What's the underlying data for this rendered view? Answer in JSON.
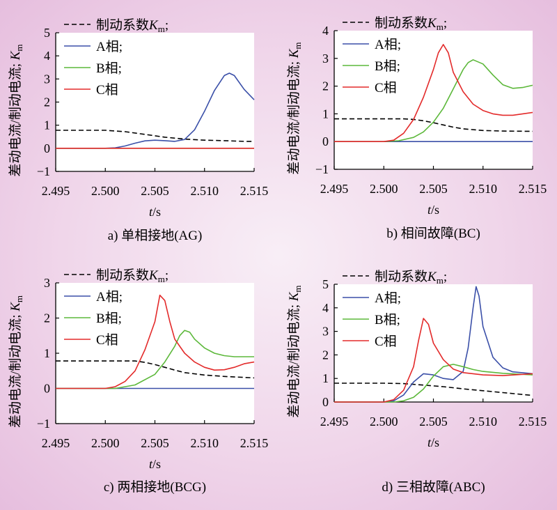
{
  "chart_data": [
    {
      "type": "line",
      "caption": "a) 单相接地(AG)",
      "xlabel_var": "t",
      "xlabel_unit": "/s",
      "ylabel": "差动电流/制动电流; K",
      "ylabel_sub": "m",
      "xlim": [
        2.495,
        2.515
      ],
      "ylim": [
        -1,
        5
      ],
      "x_ticks": [
        "2.495",
        "2.500",
        "2.505",
        "2.510",
        "2.515"
      ],
      "y_ticks": [
        "−1",
        "0",
        "1",
        "2",
        "3",
        "4",
        "5"
      ],
      "series": [
        {
          "name": "制动系数K",
          "name_sub": "m",
          "legend_suffix": ";",
          "color": "#000000",
          "dashed": true,
          "points": [
            [
              2.495,
              0.78
            ],
            [
              2.5,
              0.78
            ],
            [
              2.502,
              0.72
            ],
            [
              2.504,
              0.6
            ],
            [
              2.506,
              0.48
            ],
            [
              2.508,
              0.4
            ],
            [
              2.51,
              0.35
            ],
            [
              2.512,
              0.33
            ],
            [
              2.514,
              0.3
            ],
            [
              2.515,
              0.3
            ]
          ]
        },
        {
          "name": "A相",
          "legend_suffix": ";",
          "color": "#3a4fa8",
          "dashed": false,
          "points": [
            [
              2.495,
              0
            ],
            [
              2.5,
              0
            ],
            [
              2.501,
              0.02
            ],
            [
              2.502,
              0.1
            ],
            [
              2.503,
              0.22
            ],
            [
              2.504,
              0.32
            ],
            [
              2.505,
              0.35
            ],
            [
              2.506,
              0.33
            ],
            [
              2.507,
              0.3
            ],
            [
              2.508,
              0.38
            ],
            [
              2.509,
              0.8
            ],
            [
              2.51,
              1.6
            ],
            [
              2.511,
              2.5
            ],
            [
              2.512,
              3.15
            ],
            [
              2.5125,
              3.25
            ],
            [
              2.513,
              3.15
            ],
            [
              2.514,
              2.55
            ],
            [
              2.515,
              2.1
            ]
          ]
        },
        {
          "name": "B相",
          "legend_suffix": ";",
          "color": "#5cb83a",
          "dashed": false,
          "points": [
            [
              2.495,
              0
            ],
            [
              2.515,
              0
            ]
          ]
        },
        {
          "name": "C相",
          "legend_suffix": "",
          "color": "#e32a2a",
          "dashed": false,
          "points": [
            [
              2.495,
              0
            ],
            [
              2.515,
              0
            ]
          ]
        }
      ]
    },
    {
      "type": "line",
      "caption": "b) 相间故障(BC)",
      "xlabel_var": "t",
      "xlabel_unit": "/s",
      "ylabel": "差动电流/制动电流; K",
      "ylabel_sub": "m",
      "xlim": [
        2.495,
        2.515
      ],
      "ylim": [
        -1,
        4
      ],
      "x_ticks": [
        "2.495",
        "2.500",
        "2.505",
        "2.510",
        "2.515"
      ],
      "y_ticks": [
        "−1",
        "0",
        "1",
        "2",
        "3",
        "4"
      ],
      "series": [
        {
          "name": "制动系数K",
          "name_sub": "m",
          "legend_suffix": ";",
          "color": "#000000",
          "dashed": true,
          "points": [
            [
              2.495,
              0.82
            ],
            [
              2.502,
              0.82
            ],
            [
              2.503,
              0.8
            ],
            [
              2.504,
              0.75
            ],
            [
              2.505,
              0.68
            ],
            [
              2.506,
              0.6
            ],
            [
              2.507,
              0.52
            ],
            [
              2.508,
              0.46
            ],
            [
              2.51,
              0.4
            ],
            [
              2.512,
              0.38
            ],
            [
              2.515,
              0.37
            ]
          ]
        },
        {
          "name": "A相",
          "legend_suffix": ";",
          "color": "#3a4fa8",
          "dashed": false,
          "points": [
            [
              2.495,
              0
            ],
            [
              2.515,
              0
            ]
          ]
        },
        {
          "name": "B相",
          "legend_suffix": ";",
          "color": "#5cb83a",
          "dashed": false,
          "points": [
            [
              2.495,
              0
            ],
            [
              2.5,
              0
            ],
            [
              2.5015,
              0.03
            ],
            [
              2.503,
              0.15
            ],
            [
              2.504,
              0.35
            ],
            [
              2.505,
              0.7
            ],
            [
              2.506,
              1.2
            ],
            [
              2.507,
              1.9
            ],
            [
              2.508,
              2.6
            ],
            [
              2.5085,
              2.85
            ],
            [
              2.509,
              2.95
            ],
            [
              2.51,
              2.8
            ],
            [
              2.511,
              2.4
            ],
            [
              2.512,
              2.05
            ],
            [
              2.513,
              1.92
            ],
            [
              2.514,
              1.95
            ],
            [
              2.515,
              2.03
            ]
          ]
        },
        {
          "name": "C相",
          "legend_suffix": "",
          "color": "#e32a2a",
          "dashed": false,
          "points": [
            [
              2.495,
              0
            ],
            [
              2.5,
              0
            ],
            [
              2.501,
              0.05
            ],
            [
              2.502,
              0.3
            ],
            [
              2.503,
              0.8
            ],
            [
              2.504,
              1.6
            ],
            [
              2.505,
              2.6
            ],
            [
              2.5055,
              3.2
            ],
            [
              2.506,
              3.5
            ],
            [
              2.5065,
              3.2
            ],
            [
              2.507,
              2.5
            ],
            [
              2.508,
              1.8
            ],
            [
              2.509,
              1.35
            ],
            [
              2.51,
              1.12
            ],
            [
              2.511,
              1.0
            ],
            [
              2.512,
              0.95
            ],
            [
              2.513,
              0.95
            ],
            [
              2.514,
              1.0
            ],
            [
              2.515,
              1.05
            ]
          ]
        }
      ]
    },
    {
      "type": "line",
      "caption": "c) 两相接地(BCG)",
      "xlabel_var": "t",
      "xlabel_unit": "/s",
      "ylabel": "差动电流/制动电流; K",
      "ylabel_sub": "m",
      "xlim": [
        2.495,
        2.515
      ],
      "ylim": [
        -1,
        3
      ],
      "x_ticks": [
        "2.495",
        "2.500",
        "2.505",
        "2.510",
        "2.515"
      ],
      "y_ticks": [
        "−1",
        "0",
        "1",
        "2",
        "3"
      ],
      "series": [
        {
          "name": "制动系数K",
          "name_sub": "m",
          "legend_suffix": ";",
          "color": "#000000",
          "dashed": true,
          "points": [
            [
              2.495,
              0.78
            ],
            [
              2.503,
              0.78
            ],
            [
              2.504,
              0.74
            ],
            [
              2.505,
              0.68
            ],
            [
              2.506,
              0.6
            ],
            [
              2.507,
              0.52
            ],
            [
              2.508,
              0.45
            ],
            [
              2.51,
              0.38
            ],
            [
              2.512,
              0.34
            ],
            [
              2.515,
              0.3
            ]
          ]
        },
        {
          "name": "A相",
          "legend_suffix": ";",
          "color": "#3a4fa8",
          "dashed": false,
          "points": [
            [
              2.495,
              0
            ],
            [
              2.515,
              0
            ]
          ]
        },
        {
          "name": "B相",
          "legend_suffix": ";",
          "color": "#5cb83a",
          "dashed": false,
          "points": [
            [
              2.495,
              0
            ],
            [
              2.501,
              0
            ],
            [
              2.503,
              0.1
            ],
            [
              2.505,
              0.4
            ],
            [
              2.506,
              0.75
            ],
            [
              2.507,
              1.2
            ],
            [
              2.5075,
              1.5
            ],
            [
              2.508,
              1.65
            ],
            [
              2.5085,
              1.6
            ],
            [
              2.509,
              1.4
            ],
            [
              2.51,
              1.15
            ],
            [
              2.511,
              1.0
            ],
            [
              2.512,
              0.93
            ],
            [
              2.513,
              0.9
            ],
            [
              2.515,
              0.9
            ]
          ]
        },
        {
          "name": "C相",
          "legend_suffix": "",
          "color": "#e32a2a",
          "dashed": false,
          "points": [
            [
              2.495,
              0
            ],
            [
              2.5,
              0
            ],
            [
              2.501,
              0.05
            ],
            [
              2.502,
              0.2
            ],
            [
              2.503,
              0.5
            ],
            [
              2.504,
              1.1
            ],
            [
              2.505,
              1.9
            ],
            [
              2.5055,
              2.65
            ],
            [
              2.506,
              2.5
            ],
            [
              2.5065,
              1.9
            ],
            [
              2.507,
              1.4
            ],
            [
              2.508,
              1.0
            ],
            [
              2.509,
              0.75
            ],
            [
              2.51,
              0.6
            ],
            [
              2.511,
              0.52
            ],
            [
              2.512,
              0.53
            ],
            [
              2.513,
              0.6
            ],
            [
              2.514,
              0.7
            ],
            [
              2.515,
              0.75
            ]
          ]
        }
      ]
    },
    {
      "type": "line",
      "caption": "d) 三相故障(ABC)",
      "xlabel_var": "t",
      "xlabel_unit": "/s",
      "ylabel": "差动电流/制动电流; K",
      "ylabel_sub": "m",
      "xlim": [
        2.495,
        2.515
      ],
      "ylim": [
        0,
        5
      ],
      "x_ticks": [
        "2.495",
        "2.500",
        "2.505",
        "2.510",
        "2.515"
      ],
      "y_ticks": [
        "0",
        "1",
        "2",
        "3",
        "4",
        "5"
      ],
      "series": [
        {
          "name": "制动系数K",
          "name_sub": "m",
          "legend_suffix": ";",
          "color": "#000000",
          "dashed": true,
          "points": [
            [
              2.495,
              0.8
            ],
            [
              2.5,
              0.8
            ],
            [
              2.502,
              0.78
            ],
            [
              2.504,
              0.72
            ],
            [
              2.506,
              0.65
            ],
            [
              2.508,
              0.56
            ],
            [
              2.51,
              0.48
            ],
            [
              2.512,
              0.4
            ],
            [
              2.514,
              0.32
            ],
            [
              2.515,
              0.28
            ]
          ]
        },
        {
          "name": "A相",
          "legend_suffix": ";",
          "color": "#3a4fa8",
          "dashed": false,
          "points": [
            [
              2.495,
              0
            ],
            [
              2.5,
              0
            ],
            [
              2.501,
              0.05
            ],
            [
              2.502,
              0.3
            ],
            [
              2.503,
              0.85
            ],
            [
              2.504,
              1.2
            ],
            [
              2.505,
              1.15
            ],
            [
              2.506,
              1.0
            ],
            [
              2.507,
              0.95
            ],
            [
              2.508,
              1.3
            ],
            [
              2.5085,
              2.3
            ],
            [
              2.509,
              4.0
            ],
            [
              2.5093,
              4.9
            ],
            [
              2.5096,
              4.5
            ],
            [
              2.51,
              3.2
            ],
            [
              2.511,
              1.9
            ],
            [
              2.512,
              1.45
            ],
            [
              2.513,
              1.28
            ],
            [
              2.515,
              1.2
            ]
          ]
        },
        {
          "name": "B相",
          "legend_suffix": ";",
          "color": "#5cb83a",
          "dashed": false,
          "points": [
            [
              2.495,
              0
            ],
            [
              2.501,
              0
            ],
            [
              2.502,
              0.05
            ],
            [
              2.503,
              0.2
            ],
            [
              2.504,
              0.55
            ],
            [
              2.505,
              1.1
            ],
            [
              2.506,
              1.5
            ],
            [
              2.507,
              1.6
            ],
            [
              2.508,
              1.5
            ],
            [
              2.509,
              1.38
            ],
            [
              2.51,
              1.3
            ],
            [
              2.512,
              1.22
            ],
            [
              2.515,
              1.15
            ]
          ]
        },
        {
          "name": "C相",
          "legend_suffix": "",
          "color": "#e32a2a",
          "dashed": false,
          "points": [
            [
              2.495,
              0
            ],
            [
              2.5,
              0
            ],
            [
              2.501,
              0.1
            ],
            [
              2.502,
              0.5
            ],
            [
              2.503,
              1.5
            ],
            [
              2.5035,
              2.6
            ],
            [
              2.504,
              3.55
            ],
            [
              2.5045,
              3.3
            ],
            [
              2.505,
              2.5
            ],
            [
              2.506,
              1.8
            ],
            [
              2.507,
              1.4
            ],
            [
              2.508,
              1.25
            ],
            [
              2.51,
              1.15
            ],
            [
              2.512,
              1.12
            ],
            [
              2.515,
              1.2
            ]
          ]
        }
      ]
    }
  ]
}
